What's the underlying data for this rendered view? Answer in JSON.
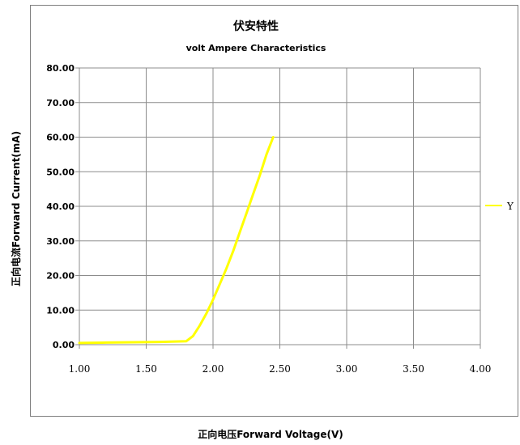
{
  "chart_data": {
    "type": "line",
    "title": "伏安特性",
    "subtitle": "volt Ampere Characteristics",
    "xlabel": "正向电压Forward Voltage(V)",
    "ylabel": "正向电流Forward Current(mA)",
    "xlim": [
      1.0,
      4.0
    ],
    "ylim": [
      0,
      80
    ],
    "x_ticks": [
      "1.00",
      "1.50",
      "2.00",
      "2.50",
      "3.00",
      "3.50",
      "4.00"
    ],
    "y_ticks": [
      "0.00",
      "10.00",
      "20.00",
      "30.00",
      "40.00",
      "50.00",
      "60.00",
      "70.00",
      "80.00"
    ],
    "grid": true,
    "legend_position": "right",
    "series": [
      {
        "name": "Y",
        "color": "#ffff00",
        "x": [
          1.0,
          1.2,
          1.4,
          1.6,
          1.8,
          1.85,
          1.9,
          1.95,
          2.0,
          2.05,
          2.1,
          2.15,
          2.2,
          2.25,
          2.3,
          2.35,
          2.4,
          2.45
        ],
        "y": [
          0.5,
          0.6,
          0.7,
          0.8,
          1.0,
          2.5,
          5.5,
          9.0,
          13.0,
          17.5,
          22.0,
          27.0,
          32.5,
          38.0,
          43.5,
          49.0,
          55.0,
          60.0
        ]
      }
    ]
  }
}
